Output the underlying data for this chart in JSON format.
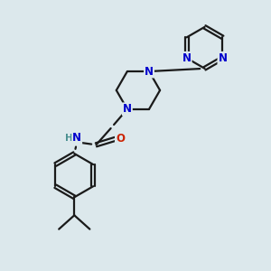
{
  "bg_color": "#dce8ec",
  "bond_color": "#1a1a1a",
  "N_color": "#0000cc",
  "O_color": "#cc2200",
  "H_color": "#4a9090",
  "line_width": 1.6,
  "font_size_atom": 8.5,
  "figsize": [
    3.0,
    3.0
  ],
  "dpi": 100,
  "xlim": [
    0,
    10
  ],
  "ylim": [
    0,
    10
  ]
}
